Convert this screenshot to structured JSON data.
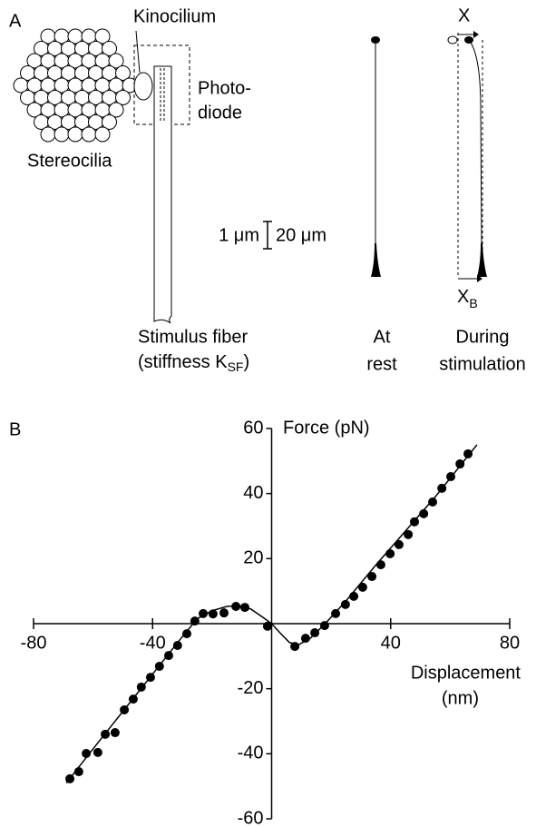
{
  "panel_a": {
    "label": "A",
    "kinocilium": "Kinocilium",
    "photodiode": [
      "Photo-",
      "diode"
    ],
    "stereocilia": "Stereocilia",
    "scale_left": "1 μm",
    "scale_right": "20 μm",
    "fiber": [
      "Stimulus fiber",
      "(stiffness K",
      "SF",
      ")"
    ],
    "rest": [
      "At",
      "rest"
    ],
    "stim": [
      "During",
      "stimulation"
    ],
    "x_top": "X",
    "x_bottom": [
      "X",
      "B"
    ]
  },
  "chart_data": {
    "type": "scatter",
    "panel_label": "B",
    "y_label": "Force (pN)",
    "x_label": [
      "Displacement",
      "(nm)"
    ],
    "xlim": [
      -80,
      80
    ],
    "ylim": [
      -60,
      60
    ],
    "xticks": [
      -80,
      -40,
      40,
      80
    ],
    "yticks": [
      60,
      40,
      20,
      -20,
      -40,
      -60
    ],
    "series": [
      {
        "style": "markers",
        "color": "#000000",
        "x": [
          -67.8,
          -64.8,
          -62.3,
          -58.4,
          -55.9,
          -52.6,
          -49.5,
          -46.5,
          -43.8,
          -40.7,
          -37.7,
          -34.6,
          -31.6,
          -28.5,
          -25.8,
          -23.0,
          -19.7,
          -16.0,
          -12.0,
          -9.0,
          -1.4,
          7.8,
          11.4,
          14.5,
          17.8,
          21.5,
          24.8,
          27.6,
          30.6,
          33.7,
          36.7,
          39.8,
          42.8,
          45.9,
          48.0,
          51.1,
          54.1,
          57.2,
          60.2,
          63.3,
          66.0
        ],
        "values": [
          -47.7,
          -45.5,
          -39.9,
          -39.6,
          -34.0,
          -33.5,
          -26.5,
          -23.2,
          -19.5,
          -16.5,
          -13.1,
          -9.8,
          -6.7,
          -3.1,
          0.8,
          3.1,
          3.0,
          3.3,
          5.3,
          5.0,
          -0.8,
          -7.0,
          -4.5,
          -2.8,
          -0.6,
          3.1,
          5.9,
          8.4,
          11.2,
          14.5,
          18.1,
          21.5,
          24.3,
          27.4,
          31.3,
          33.8,
          37.4,
          41.6,
          45.2,
          49.1,
          52.2
        ]
      },
      {
        "style": "line",
        "color": "#000000",
        "x": [
          -69,
          -60,
          -50,
          -40,
          -30,
          -25,
          -20,
          -15,
          -11,
          -7,
          -3,
          0,
          3,
          6,
          9,
          13,
          18,
          25,
          35,
          45,
          55,
          69
        ],
        "values": [
          -49,
          -38.5,
          -27,
          -15.5,
          -4,
          1.5,
          4,
          5.3,
          5.5,
          4.5,
          2,
          0,
          -3,
          -5.8,
          -6.5,
          -4.5,
          0,
          7,
          18,
          28.5,
          39,
          55
        ]
      }
    ]
  }
}
